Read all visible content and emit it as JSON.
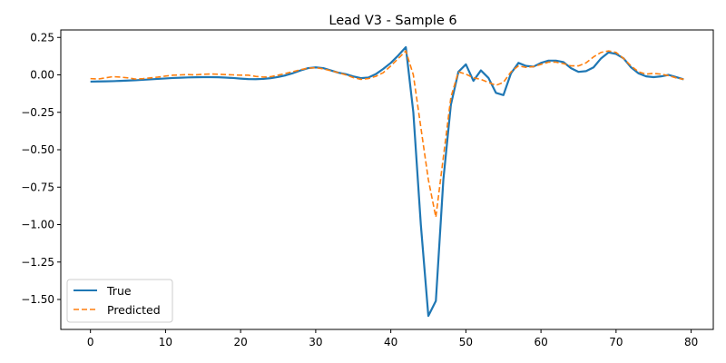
{
  "chart_data": {
    "type": "line",
    "title": "Lead V3 - Sample 6",
    "xlabel": "",
    "ylabel": "",
    "xlim": [
      -3.95,
      82.95
    ],
    "ylim": [
      -1.7,
      0.3
    ],
    "xticks": [
      0,
      10,
      20,
      30,
      40,
      50,
      60,
      70,
      80
    ],
    "yticks": [
      -1.5,
      -1.25,
      -1.0,
      -0.75,
      -0.5,
      -0.25,
      0.0,
      0.25
    ],
    "ytick_labels": [
      "−1.50",
      "−1.25",
      "−1.00",
      "−0.75",
      "−0.50",
      "−0.25",
      "0.00",
      "0.25"
    ],
    "grid": false,
    "legend_position": "lower-left",
    "series": [
      {
        "name": "True",
        "color": "#1f77b4",
        "style": "solid",
        "x": [
          0,
          1,
          2,
          3,
          4,
          5,
          6,
          7,
          8,
          9,
          10,
          11,
          12,
          13,
          14,
          15,
          16,
          17,
          18,
          19,
          20,
          21,
          22,
          23,
          24,
          25,
          26,
          27,
          28,
          29,
          30,
          31,
          32,
          33,
          34,
          35,
          36,
          37,
          38,
          39,
          40,
          41,
          42,
          43,
          44,
          45,
          46,
          47,
          48,
          49,
          50,
          51,
          52,
          53,
          54,
          55,
          56,
          57,
          58,
          59,
          60,
          61,
          62,
          63,
          64,
          65,
          66,
          67,
          68,
          69,
          70,
          71,
          72,
          73,
          74,
          75,
          76,
          77,
          78,
          79
        ],
        "values": [
          -0.045,
          -0.044,
          -0.043,
          -0.042,
          -0.04,
          -0.038,
          -0.036,
          -0.033,
          -0.03,
          -0.027,
          -0.024,
          -0.021,
          -0.019,
          -0.017,
          -0.016,
          -0.015,
          -0.015,
          -0.016,
          -0.018,
          -0.021,
          -0.025,
          -0.028,
          -0.029,
          -0.027,
          -0.022,
          -0.014,
          -0.003,
          0.012,
          0.03,
          0.045,
          0.05,
          0.045,
          0.03,
          0.015,
          0.005,
          -0.01,
          -0.022,
          -0.018,
          0.005,
          0.04,
          0.08,
          0.13,
          0.185,
          -0.25,
          -1.0,
          -1.61,
          -1.51,
          -0.7,
          -0.2,
          0.02,
          0.07,
          -0.04,
          0.03,
          -0.02,
          -0.12,
          -0.135,
          0.01,
          0.08,
          0.06,
          0.055,
          0.08,
          0.095,
          0.095,
          0.085,
          0.045,
          0.02,
          0.025,
          0.05,
          0.11,
          0.15,
          0.14,
          0.11,
          0.05,
          0.01,
          -0.01,
          -0.015,
          -0.01,
          0.0,
          -0.015,
          -0.03
        ]
      },
      {
        "name": "Predicted",
        "color": "#ff7f0e",
        "style": "dashed",
        "x": [
          0,
          1,
          2,
          3,
          4,
          5,
          6,
          7,
          8,
          9,
          10,
          11,
          12,
          13,
          14,
          15,
          16,
          17,
          18,
          19,
          20,
          21,
          22,
          23,
          24,
          25,
          26,
          27,
          28,
          29,
          30,
          31,
          32,
          33,
          34,
          35,
          36,
          37,
          38,
          39,
          40,
          41,
          42,
          43,
          44,
          45,
          46,
          47,
          48,
          49,
          50,
          51,
          52,
          53,
          54,
          55,
          56,
          57,
          58,
          59,
          60,
          61,
          62,
          63,
          64,
          65,
          66,
          67,
          68,
          69,
          70,
          71,
          72,
          73,
          74,
          75,
          76,
          77,
          78,
          79
        ],
        "values": [
          -0.025,
          -0.028,
          -0.02,
          -0.012,
          -0.015,
          -0.02,
          -0.028,
          -0.025,
          -0.02,
          -0.015,
          -0.008,
          -0.002,
          0.0,
          0.002,
          0.0,
          0.004,
          0.006,
          0.004,
          0.002,
          0.0,
          -0.002,
          -0.002,
          -0.01,
          -0.015,
          -0.012,
          -0.002,
          0.01,
          0.022,
          0.035,
          0.045,
          0.048,
          0.04,
          0.028,
          0.015,
          0.0,
          -0.018,
          -0.03,
          -0.025,
          -0.01,
          0.015,
          0.06,
          0.11,
          0.16,
          0.0,
          -0.35,
          -0.7,
          -0.95,
          -0.55,
          -0.15,
          0.02,
          0.005,
          -0.02,
          -0.03,
          -0.05,
          -0.07,
          -0.05,
          0.02,
          0.06,
          0.05,
          0.055,
          0.07,
          0.085,
          0.085,
          0.075,
          0.06,
          0.06,
          0.08,
          0.12,
          0.15,
          0.16,
          0.15,
          0.11,
          0.06,
          0.02,
          0.005,
          0.01,
          0.005,
          -0.005,
          -0.02,
          -0.03
        ]
      }
    ]
  }
}
